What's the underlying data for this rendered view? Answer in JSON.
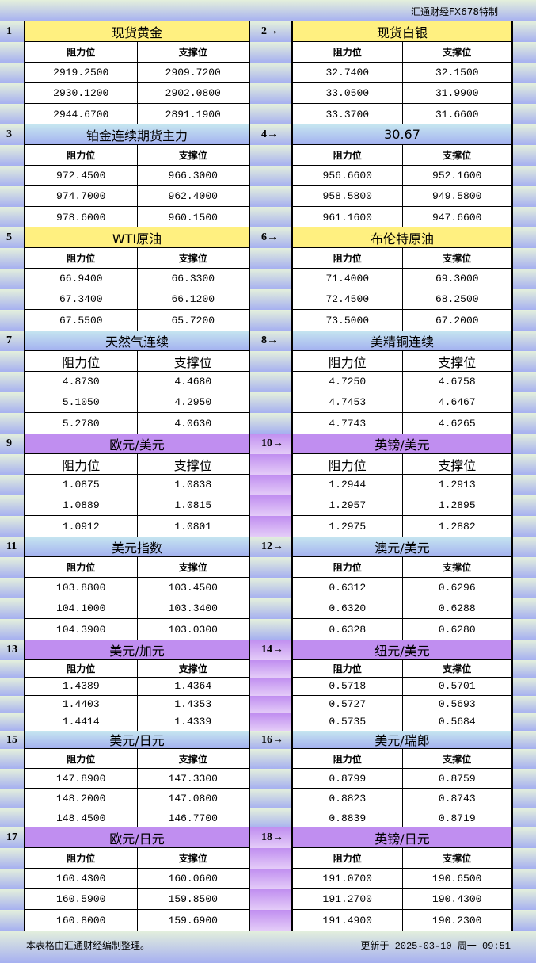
{
  "header": {
    "brand": "汇通财经FX678特制"
  },
  "columns": {
    "resistance": "阻力位",
    "support": "支撑位"
  },
  "colors": {
    "yellow": "#fff080",
    "blue": "#b8d4f0",
    "purple": "#c08ef0"
  },
  "blocks": [
    {
      "left": {
        "no": "1",
        "title": "现货黄金",
        "rows": [
          [
            "2919.2500",
            "2909.7200"
          ],
          [
            "2930.1200",
            "2902.0800"
          ],
          [
            "2944.6700",
            "2891.1900"
          ]
        ]
      },
      "right": {
        "no": "2→",
        "title": "现货白银",
        "rows": [
          [
            "32.7400",
            "32.1500"
          ],
          [
            "33.0500",
            "31.9900"
          ],
          [
            "33.3700",
            "31.6600"
          ]
        ]
      },
      "theme": "yellow"
    },
    {
      "left": {
        "no": "3",
        "title": "铂金连续期货主力",
        "rows": [
          [
            "972.4500",
            "966.3000"
          ],
          [
            "974.7000",
            "962.4000"
          ],
          [
            "978.6000",
            "960.1500"
          ]
        ]
      },
      "right": {
        "no": "4→",
        "title": "30.67",
        "rows": [
          [
            "956.6600",
            "952.1600"
          ],
          [
            "958.5800",
            "949.5800"
          ],
          [
            "961.1600",
            "947.6600"
          ]
        ]
      },
      "theme": "blue"
    },
    {
      "left": {
        "no": "5",
        "title": "WTI原油",
        "rows": [
          [
            "66.9400",
            "66.3300"
          ],
          [
            "67.3400",
            "66.1200"
          ],
          [
            "67.5500",
            "65.7200"
          ]
        ]
      },
      "right": {
        "no": "6→",
        "title": "布伦特原油",
        "rows": [
          [
            "71.4000",
            "69.3000"
          ],
          [
            "72.4500",
            "68.2500"
          ],
          [
            "73.5000",
            "67.2000"
          ]
        ]
      },
      "theme": "yellow"
    },
    {
      "left": {
        "no": "7",
        "title": "天然气连续",
        "rows": [
          [
            "4.8730",
            "4.4680"
          ],
          [
            "5.1050",
            "4.2950"
          ],
          [
            "5.2780",
            "4.0630"
          ]
        ]
      },
      "right": {
        "no": "8→",
        "title": "美精铜连续",
        "rows": [
          [
            "4.7250",
            "4.6758"
          ],
          [
            "4.7453",
            "4.6467"
          ],
          [
            "4.7743",
            "4.6265"
          ]
        ]
      },
      "theme": "blue"
    },
    {
      "left": {
        "no": "9",
        "title": "欧元/美元",
        "rows": [
          [
            "1.0875",
            "1.0838"
          ],
          [
            "1.0889",
            "1.0815"
          ],
          [
            "1.0912",
            "1.0801"
          ]
        ]
      },
      "right": {
        "no": "10→",
        "title": "英镑/美元",
        "rows": [
          [
            "1.2944",
            "1.2913"
          ],
          [
            "1.2957",
            "1.2895"
          ],
          [
            "1.2975",
            "1.2882"
          ]
        ]
      },
      "theme": "purple"
    },
    {
      "left": {
        "no": "11",
        "title": "美元指数",
        "rows": [
          [
            "103.8800",
            "103.4500"
          ],
          [
            "104.1000",
            "103.3400"
          ],
          [
            "104.3900",
            "103.0300"
          ]
        ]
      },
      "right": {
        "no": "12→",
        "title": "澳元/美元",
        "rows": [
          [
            "0.6312",
            "0.6296"
          ],
          [
            "0.6320",
            "0.6288"
          ],
          [
            "0.6328",
            "0.6280"
          ]
        ]
      },
      "theme": "blue"
    },
    {
      "left": {
        "no": "13",
        "title": "美元/加元",
        "rows": [
          [
            "1.4389",
            "1.4364"
          ],
          [
            "1.4403",
            "1.4353"
          ],
          [
            "1.4414",
            "1.4339"
          ]
        ]
      },
      "right": {
        "no": "14→",
        "title": "纽元/美元",
        "rows": [
          [
            "0.5718",
            "0.5701"
          ],
          [
            "0.5727",
            "0.5693"
          ],
          [
            "0.5735",
            "0.5684"
          ]
        ]
      },
      "theme": "purple"
    },
    {
      "left": {
        "no": "15",
        "title": "美元/日元",
        "rows": [
          [
            "147.8900",
            "147.3300"
          ],
          [
            "148.2000",
            "147.0800"
          ],
          [
            "148.4500",
            "146.7700"
          ]
        ]
      },
      "right": {
        "no": "16→",
        "title": "美元/瑞郎",
        "rows": [
          [
            "0.8799",
            "0.8759"
          ],
          [
            "0.8823",
            "0.8743"
          ],
          [
            "0.8839",
            "0.8719"
          ]
        ]
      },
      "theme": "blue"
    },
    {
      "left": {
        "no": "17",
        "title": "欧元/日元",
        "rows": [
          [
            "160.4300",
            "160.0600"
          ],
          [
            "160.5900",
            "159.8500"
          ],
          [
            "160.8000",
            "159.6900"
          ]
        ]
      },
      "right": {
        "no": "18→",
        "title": "英镑/日元",
        "rows": [
          [
            "191.0700",
            "190.6500"
          ],
          [
            "191.2700",
            "190.4300"
          ],
          [
            "191.4900",
            "190.2300"
          ]
        ]
      },
      "theme": "purple"
    }
  ],
  "footer": {
    "note": "本表格由汇通财经编制整理。",
    "updated": "更新于 2025-03-10 周一 09:51"
  }
}
